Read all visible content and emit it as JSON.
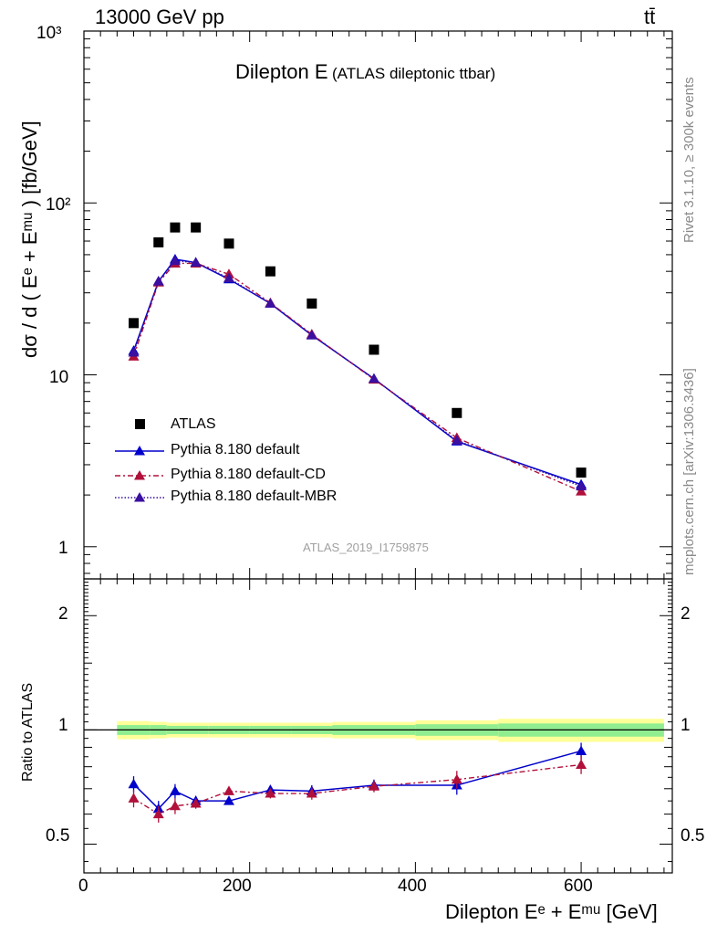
{
  "header": {
    "left": "13000 GeV pp",
    "right": "tt̄"
  },
  "title": {
    "main": "Dilepton E",
    "sub": "(ATLAS dileptonic ttbar)"
  },
  "side_text": {
    "rivet": "Rivet 3.1.10, ≥ 300k events",
    "mcplots": "mcplots.cern.ch [arXiv:1306.3436]"
  },
  "watermark": "ATLAS_2019_I1759875",
  "axes": {
    "ylabel_main": "dσ / d ( Eᵉ + Eᵐᵘ ) [fb/GeV]",
    "ylabel_ratio": "Ratio to ATLAS",
    "xlabel": "Dilepton Eᵉ + Eᵐᵘ [GeV]",
    "x_ticks": [
      "0",
      "200",
      "400",
      "600"
    ],
    "y_ticks_main": [
      "1",
      "10",
      "10²",
      "10³"
    ],
    "y_ticks_ratio": [
      "0.5",
      "1",
      "2"
    ]
  },
  "legend": {
    "atlas": "ATLAS",
    "default": "Pythia 8.180 default",
    "cd": "Pythia 8.180 default-CD",
    "mbr": "Pythia 8.180 default-MBR"
  },
  "colors": {
    "atlas": "#000000",
    "default": "#0000cc",
    "cd": "#b0103a",
    "mbr": "#3b0fa0",
    "band_inner": "#90ee90",
    "band_outer": "#ffff99"
  },
  "chart_data": {
    "type": "scatter",
    "x_range": [
      0,
      710
    ],
    "main": {
      "scale": "log",
      "ylim": [
        0.65,
        1000
      ],
      "bins": [
        40,
        80,
        100,
        120,
        150,
        200,
        250,
        300,
        400,
        500,
        700
      ],
      "x": [
        60,
        90,
        110,
        135,
        175,
        225,
        275,
        350,
        450,
        600
      ],
      "series": [
        {
          "name": "ATLAS",
          "style": "marker",
          "values": [
            20,
            59,
            72,
            72,
            58,
            40,
            26,
            14,
            6,
            2.7
          ]
        },
        {
          "name": "Pythia 8.180 default",
          "style": "solid",
          "values": [
            13.8,
            35,
            47,
            45,
            36,
            26,
            17,
            9.5,
            4.1,
            2.3
          ]
        },
        {
          "name": "Pythia 8.180 default-CD",
          "style": "dashdot",
          "values": [
            12.8,
            34.5,
            44.5,
            44.5,
            38.5,
            26.2,
            17.2,
            9.4,
            4.3,
            2.1
          ]
        },
        {
          "name": "Pythia 8.180 default-MBR",
          "style": "dotted",
          "values": [
            13.5,
            35,
            46,
            45,
            36.5,
            26,
            17,
            9.5,
            4.15,
            2.25
          ]
        }
      ]
    },
    "ratio": {
      "scale": "log",
      "ylim": [
        0.42,
        2.5
      ],
      "x": [
        60,
        90,
        110,
        135,
        175,
        225,
        275,
        350,
        450,
        600
      ],
      "band_inner": [
        0.03,
        0.03,
        0.025,
        0.025,
        0.025,
        0.025,
        0.025,
        0.03,
        0.035,
        0.04
      ],
      "band_outer": [
        0.055,
        0.05,
        0.045,
        0.045,
        0.045,
        0.045,
        0.045,
        0.05,
        0.06,
        0.07
      ],
      "series": [
        {
          "name": "Pythia 8.180 default",
          "values": [
            0.72,
            0.62,
            0.69,
            0.65,
            0.65,
            0.695,
            0.69,
            0.715,
            0.715,
            0.88
          ],
          "errors": [
            0.035,
            0.03,
            0.03,
            0.02,
            0.015,
            0.02,
            0.025,
            0.025,
            0.04,
            0.045
          ]
        },
        {
          "name": "Pythia 8.180 default-CD",
          "values": [
            0.66,
            0.6,
            0.63,
            0.64,
            0.69,
            0.68,
            0.68,
            0.71,
            0.74,
            0.81
          ],
          "errors": [
            0.035,
            0.03,
            0.03,
            0.02,
            0.015,
            0.02,
            0.025,
            0.025,
            0.04,
            0.045
          ]
        }
      ]
    }
  }
}
